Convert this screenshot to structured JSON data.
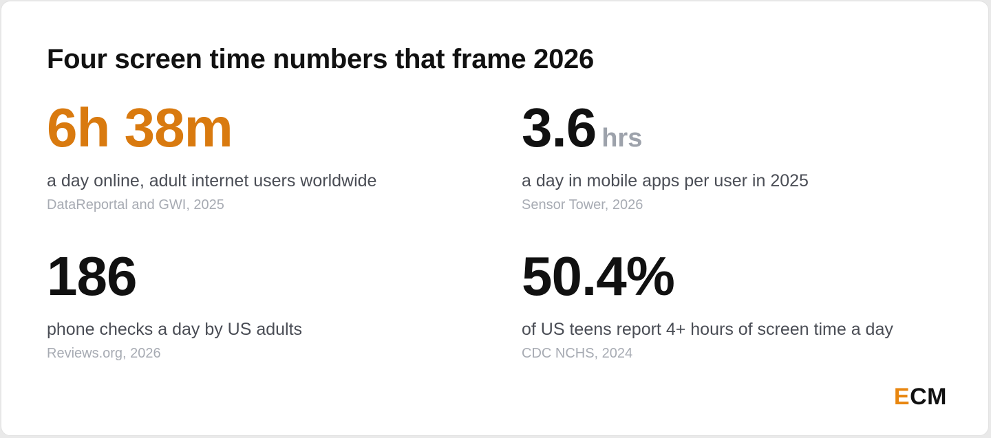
{
  "title": "Four screen time numbers that frame 2026",
  "colors": {
    "accent": "#d97a0f",
    "logo_accent": "#e8860f",
    "text_dark": "#111111",
    "text_muted": "#4a4d55",
    "text_source": "#a7abb3",
    "unit": "#9da2ab"
  },
  "stats": [
    {
      "value": "6h 38m",
      "unit": "",
      "description": "a day online, adult internet users worldwide",
      "source": "DataReportal and GWI, 2025"
    },
    {
      "value": "3.6",
      "unit": "hrs",
      "description": "a day in mobile apps per user in 2025",
      "source": "Sensor Tower, 2026"
    },
    {
      "value": "186",
      "unit": "",
      "description": "phone checks a day by US adults",
      "source": "Reviews.org, 2026"
    },
    {
      "value": "50.4%",
      "unit": "",
      "description": "of US teens report 4+ hours of screen time a day",
      "source": "CDC NCHS, 2024"
    }
  ],
  "logo": {
    "first_letter": "E",
    "rest": "CM"
  }
}
